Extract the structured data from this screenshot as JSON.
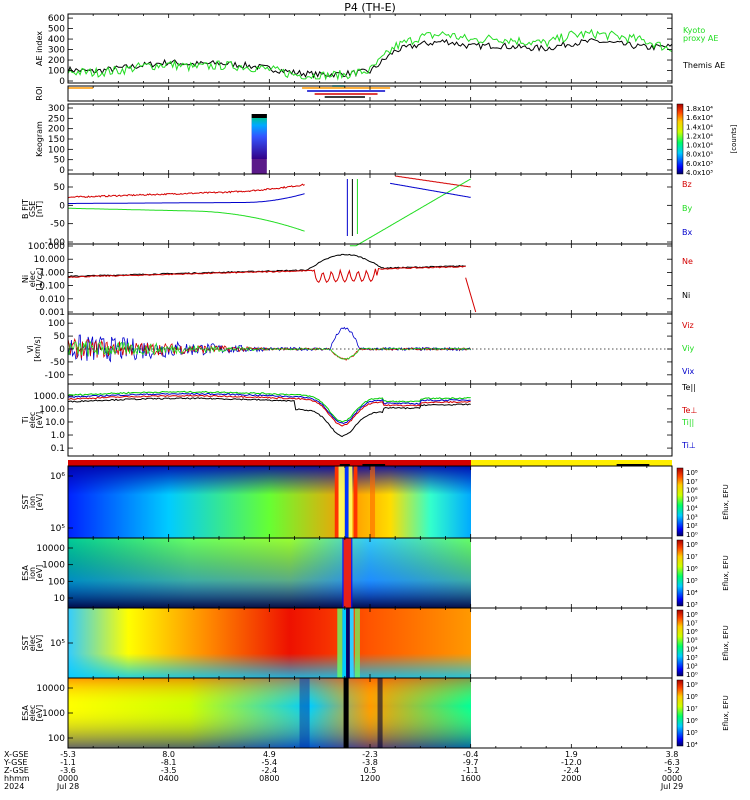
{
  "title": "P4 (TH-E)",
  "colors": {
    "black": "#000000",
    "red": "#d40000",
    "green": "#22dd22",
    "blue": "#0000cc",
    "orange": "#ff9900",
    "yellow": "#ffee00"
  },
  "chart_data": [
    {
      "type": "line",
      "id": "ae",
      "ylabel": "AE index",
      "yticks": [
        "600",
        "500",
        "400",
        "300",
        "200",
        "100",
        "0"
      ],
      "ylim": [
        0,
        620
      ],
      "x_hours": [
        0,
        1,
        2,
        3,
        4,
        5,
        6,
        7,
        8,
        9,
        10,
        11,
        12,
        13,
        14,
        15,
        16,
        17,
        18,
        19,
        20,
        21,
        22,
        23,
        24
      ],
      "series": [
        {
          "name": "Themis AE",
          "color": "black",
          "values": [
            110,
            90,
            120,
            150,
            180,
            160,
            170,
            150,
            120,
            80,
            60,
            70,
            90,
            290,
            350,
            380,
            330,
            340,
            320,
            310,
            360,
            380,
            350,
            320,
            330
          ]
        },
        {
          "name": "Kyoto proxy AE",
          "color": "green",
          "values": [
            90,
            80,
            100,
            140,
            160,
            130,
            150,
            140,
            110,
            60,
            50,
            60,
            100,
            330,
            420,
            450,
            390,
            410,
            380,
            360,
            440,
            450,
            420,
            380,
            300
          ]
        }
      ],
      "legend": [
        "Kyoto",
        "proxy AE",
        "Themis AE"
      ]
    },
    {
      "type": "line",
      "id": "roi",
      "ylabel": "ROI"
    },
    {
      "type": "heatmap",
      "id": "keogram",
      "ylabel": "Keogram",
      "yticks": [
        "300",
        "250",
        "200",
        "150",
        "100",
        "50",
        "0"
      ],
      "colorbar_ticks": [
        "1.8x10⁴",
        "1.6x10⁴",
        "1.4x10⁴",
        "1.2x10⁴",
        "1.0x10⁴",
        "8.0x10³",
        "6.0x10³",
        "4.0x10³"
      ],
      "colorbar_label": "[counts]"
    },
    {
      "type": "line",
      "id": "bfield",
      "ylabel": "B FIT",
      "ylabel2": "GSE",
      "ylabel3": "[nT]",
      "yticks": [
        "50",
        "0",
        "-50",
        "-100"
      ],
      "ylim": [
        -100,
        80
      ],
      "series": [
        {
          "name": "Bz",
          "color": "red",
          "label": "Bz"
        },
        {
          "name": "By",
          "color": "green",
          "label": "By"
        },
        {
          "name": "Bx",
          "color": "blue",
          "label": "Bx"
        }
      ]
    },
    {
      "type": "line",
      "id": "density",
      "ylabel": "Ni",
      "ylabel2": "elec",
      "ylabel3": "[1/cc]",
      "yticks": [
        "100.000",
        "10.000",
        "1.000",
        "0.100",
        "0.010",
        "0.001"
      ],
      "series": [
        {
          "name": "Ne",
          "color": "red",
          "label": "Ne"
        },
        {
          "name": "Ni",
          "color": "black",
          "label": "Ni"
        }
      ]
    },
    {
      "type": "line",
      "id": "velocity",
      "ylabel": "Vi",
      "ylabel3": "[km/s]",
      "yticks": [
        "100",
        "50",
        "0",
        "-50",
        "-100"
      ],
      "series": [
        {
          "name": "Viz",
          "color": "red",
          "label": "Viz"
        },
        {
          "name": "Viy",
          "color": "green",
          "label": "Viy"
        },
        {
          "name": "Vix",
          "color": "blue",
          "label": "Vix"
        }
      ]
    },
    {
      "type": "line",
      "id": "temperature",
      "ylabel": "Ti",
      "ylabel2": "elec",
      "ylabel3": "[eV]",
      "yticks": [
        "1000.0",
        "100.0",
        "10.0",
        "1.0",
        "0.1"
      ],
      "series": [
        {
          "name": "Te||",
          "color": "black",
          "label": "Te||"
        },
        {
          "name": "Te⊥",
          "color": "red",
          "label": "Te⊥"
        },
        {
          "name": "Ti||",
          "color": "green",
          "label": "Ti||"
        },
        {
          "name": "Ti⊥",
          "color": "blue",
          "label": "Ti⊥"
        }
      ]
    },
    {
      "type": "heatmap",
      "id": "sst_ion",
      "ylabel": "SST",
      "ylabel2": "ion",
      "ylabel3": "[eV]",
      "yticks": [
        "10⁶",
        "10⁵"
      ],
      "colorbar_ticks": [
        "10⁸",
        "10⁷",
        "10⁶",
        "10⁵",
        "10⁴",
        "10³",
        "10²",
        "10⁰"
      ],
      "colorbar_label": "Eflux, EFU"
    },
    {
      "type": "heatmap",
      "id": "esa_ion",
      "ylabel": "ESA",
      "ylabel2": "ion",
      "ylabel3": "[eV]",
      "yticks": [
        "10000",
        "1000",
        "100",
        "10"
      ],
      "colorbar_ticks": [
        "10⁸",
        "10⁷",
        "10⁶",
        "10⁵",
        "10⁴",
        "10³"
      ],
      "colorbar_label": "Eflux, EFU"
    },
    {
      "type": "heatmap",
      "id": "sst_elec",
      "ylabel": "SST",
      "ylabel2": "elec",
      "ylabel3": "[eV]",
      "yticks": [
        "10⁵"
      ],
      "colorbar_ticks": [
        "10⁸",
        "10⁷",
        "10⁶",
        "10⁵",
        "10⁴",
        "10³",
        "10²",
        "10⁰"
      ],
      "colorbar_label": "Eflux, EFU"
    },
    {
      "type": "heatmap",
      "id": "esa_elec",
      "ylabel": "ESA",
      "ylabel2": "elec",
      "ylabel3": "[eV]",
      "yticks": [
        "10000",
        "1000",
        "100"
      ],
      "colorbar_ticks": [
        "10⁹",
        "10⁸",
        "10⁷",
        "10⁶",
        "10⁵",
        "10⁴"
      ],
      "colorbar_label": "Eflux, EFU"
    }
  ],
  "xaxis": {
    "row_labels": [
      "X-GSE",
      "Y-GSE",
      "Z-GSE",
      "hhmm",
      "2024"
    ],
    "ticks": [
      {
        "X": "-5.3",
        "Y": "-1.1",
        "Z": "-3.6",
        "hhmm": "0000",
        "date": "Jul 28"
      },
      {
        "X": "8.0",
        "Y": "-8.1",
        "Z": "-3.5",
        "hhmm": "0400",
        "date": ""
      },
      {
        "X": "4.9",
        "Y": "-5.4",
        "Z": "-2.4",
        "hhmm": "0800",
        "date": ""
      },
      {
        "X": "-2.3",
        "Y": "-3.8",
        "Z": "0.5",
        "hhmm": "1200",
        "date": ""
      },
      {
        "X": "-0.4",
        "Y": "-9.7",
        "Z": "-1.1",
        "hhmm": "1600",
        "date": ""
      },
      {
        "X": "1.9",
        "Y": "-12.0",
        "Z": "-2.4",
        "hhmm": "2000",
        "date": ""
      },
      {
        "X": "3.8",
        "Y": "-6.3",
        "Z": "-5.2",
        "hhmm": "0000",
        "date": "Jul 29"
      }
    ]
  }
}
